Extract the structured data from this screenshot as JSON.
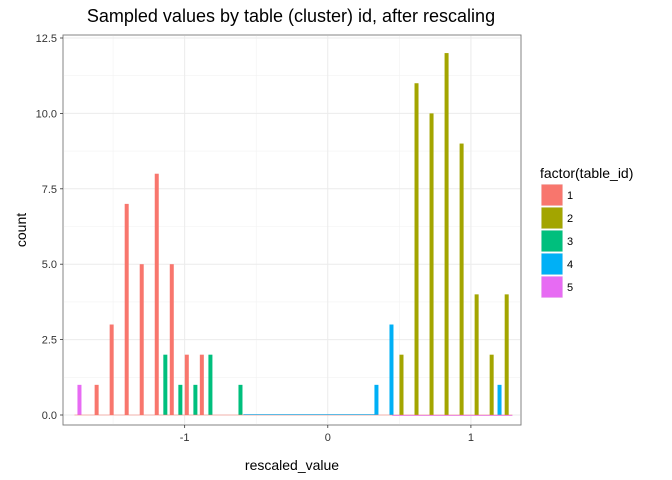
{
  "chart_data": {
    "type": "bar",
    "title": "Sampled values by table (cluster) id, after rescaling",
    "xlabel": "rescaled_value",
    "ylabel": "count",
    "xlim": [
      -1.85,
      1.35
    ],
    "ylim": [
      0,
      12.5
    ],
    "x_ticks": [
      -1,
      0,
      1
    ],
    "x_tick_labels": [
      "-1",
      "0",
      "1"
    ],
    "y_ticks": [
      0,
      2.5,
      5,
      7.5,
      10,
      12.5
    ],
    "y_tick_labels": [
      "0.0",
      "2.5",
      "5.0",
      "7.5",
      "10.0",
      "12.5"
    ],
    "grid": true,
    "legend": {
      "title": "factor(table_id)",
      "placement": "right"
    },
    "series": [
      {
        "name": "1",
        "color": "#F8766D",
        "x": [
          -1.615,
          -1.51,
          -1.405,
          -1.3,
          -1.195,
          -1.09,
          -0.985,
          -0.88
        ],
        "y": [
          1,
          3,
          7,
          5,
          8,
          5,
          2,
          2
        ]
      },
      {
        "name": "2",
        "color": "#A3A500",
        "x": [
          0.515,
          0.62,
          0.725,
          0.83,
          0.935,
          1.04,
          1.145,
          1.25
        ],
        "y": [
          2,
          11,
          10,
          12,
          9,
          4,
          2,
          4
        ]
      },
      {
        "name": "3",
        "color": "#00BF7D",
        "x": [
          -1.135,
          -1.03,
          -0.925,
          -0.82,
          -0.61
        ],
        "y": [
          2,
          1,
          1,
          2,
          1
        ]
      },
      {
        "name": "4",
        "color": "#00B0F6",
        "x": [
          0.34,
          0.445,
          1.2
        ],
        "y": [
          1,
          3,
          1
        ]
      },
      {
        "name": "5",
        "color": "#E76BF3",
        "x": [
          -1.735
        ],
        "y": [
          1
        ]
      }
    ]
  }
}
